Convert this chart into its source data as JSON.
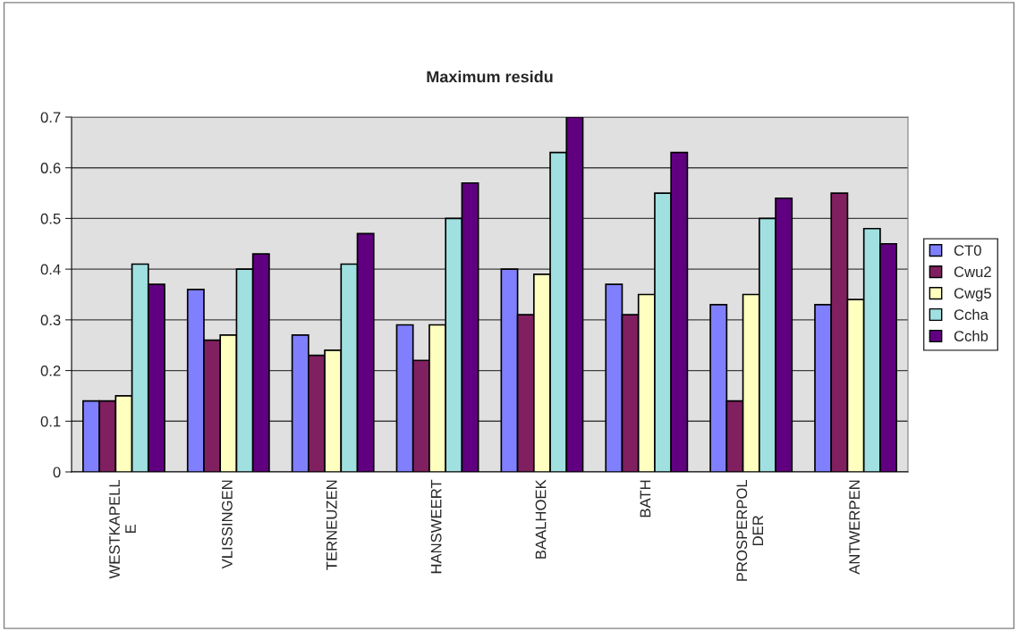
{
  "chart_data": {
    "type": "bar",
    "title": "Maximum residu",
    "categories": [
      "WESTKAPELLE",
      "VLISSINGEN",
      "TERNEUZEN",
      "HANSWEERT",
      "BAALHOEK",
      "BATH",
      "PROSPERPOLDER",
      "ANTWERPEN"
    ],
    "series": [
      {
        "name": "CT0",
        "color": "#8080ff",
        "values": [
          0.14,
          0.36,
          0.27,
          0.29,
          0.4,
          0.37,
          0.33,
          0.33
        ]
      },
      {
        "name": "Cwu2",
        "color": "#802060",
        "values": [
          0.14,
          0.26,
          0.23,
          0.22,
          0.31,
          0.31,
          0.14,
          0.55
        ]
      },
      {
        "name": "Cwg5",
        "color": "#ffffc0",
        "values": [
          0.15,
          0.27,
          0.24,
          0.29,
          0.39,
          0.35,
          0.35,
          0.34
        ]
      },
      {
        "name": "Ccha",
        "color": "#a0e0e0",
        "values": [
          0.41,
          0.4,
          0.41,
          0.5,
          0.63,
          0.55,
          0.5,
          0.48
        ]
      },
      {
        "name": "Cchb",
        "color": "#600080",
        "values": [
          0.37,
          0.43,
          0.47,
          0.57,
          0.7,
          0.63,
          0.54,
          0.45
        ]
      }
    ],
    "ylim": [
      0,
      0.7
    ],
    "yticks": [
      0,
      0.1,
      0.2,
      0.3,
      0.4,
      0.5,
      0.6,
      0.7
    ],
    "grid": "y",
    "legend": "right"
  }
}
